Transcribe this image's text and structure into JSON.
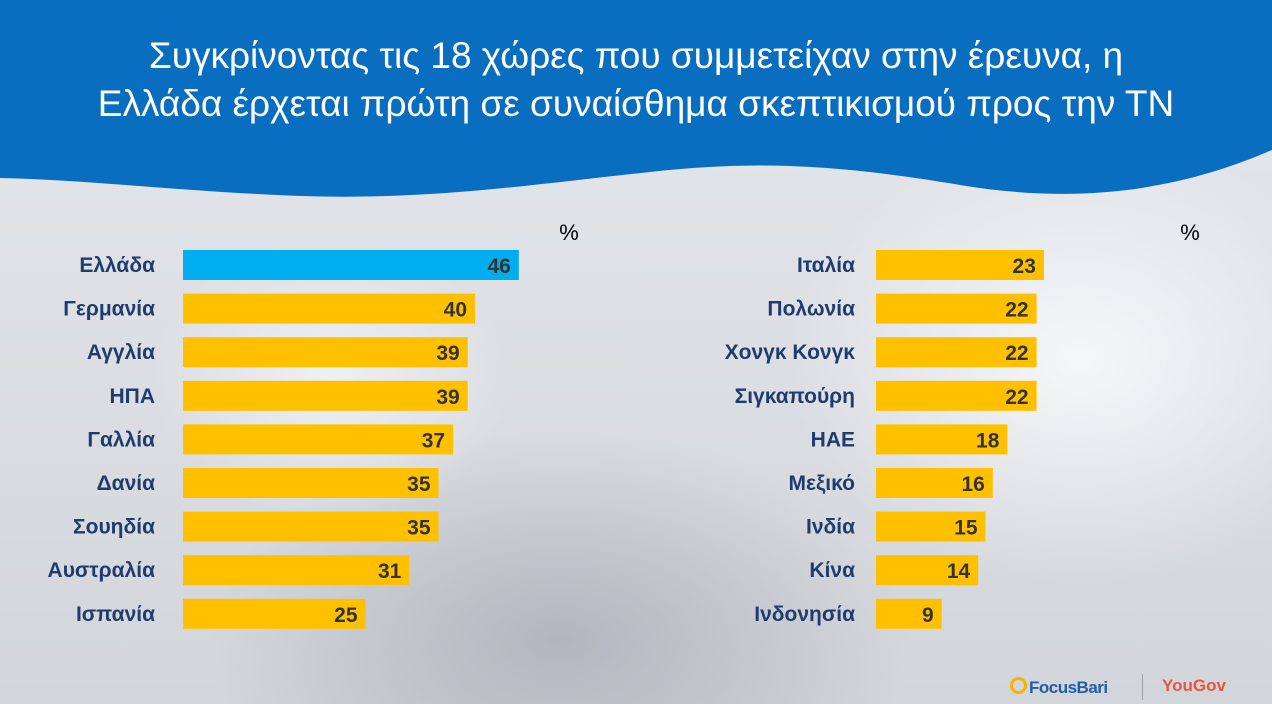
{
  "title": {
    "line1": "Συγκρίνοντας τις 18 χώρες που συμμετείχαν στην έρευνα, η",
    "line2": "Ελλάδα έρχεται πρώτη σε συναίσθημα σκεπτικισμού προς την ΤΝ"
  },
  "colors": {
    "header": "#0a6ec0",
    "highlight_bar": "#00aeef",
    "bar": "#ffc000"
  },
  "chart_data": [
    {
      "type": "bar",
      "orientation": "horizontal",
      "unit_label": "%",
      "categories": [
        "Ελλάδα",
        "Γερμανία",
        "Αγγλία",
        "ΗΠΑ",
        "Γαλλία",
        "Δανία",
        "Σουηδία",
        "Αυστραλία",
        "Ισπανία"
      ],
      "values": [
        46,
        40,
        39,
        39,
        37,
        35,
        35,
        31,
        25
      ],
      "highlight": [
        "Ελλάδα"
      ]
    },
    {
      "type": "bar",
      "orientation": "horizontal",
      "unit_label": "%",
      "categories": [
        "Ιταλία",
        "Πολωνία",
        "Χονγκ Κονγκ",
        "Σιγκαπούρη",
        "ΗΑΕ",
        "Μεξικό",
        "Ινδία",
        "Κίνα",
        "Ινδονησία"
      ],
      "values": [
        23,
        22,
        22,
        22,
        18,
        16,
        15,
        14,
        9
      ],
      "highlight": []
    }
  ],
  "logos": {
    "focusbari": "FocusBari",
    "yougov": "YouGov"
  }
}
